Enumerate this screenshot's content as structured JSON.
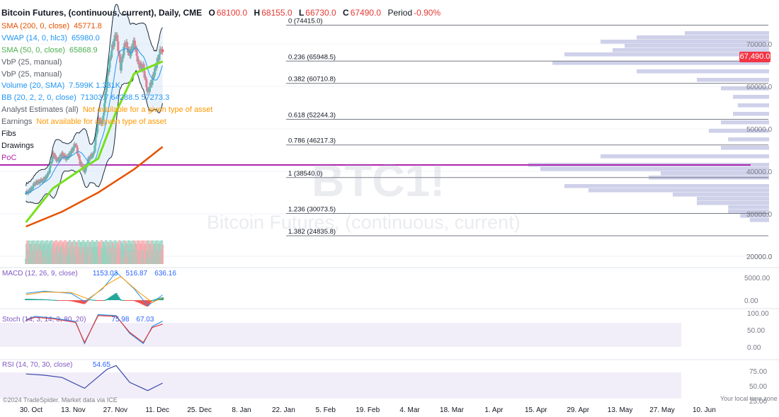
{
  "header": {
    "symbol": "Bitcoin Futures, (continuous, current), Daily, CME",
    "o_label": "O",
    "o": "68100.0",
    "h_label": "H",
    "h": "68155.0",
    "l_label": "L",
    "l": "66730.0",
    "c_label": "C",
    "c": "67490.0",
    "period_label": "Period",
    "period": "-0.90%"
  },
  "indicators": [
    {
      "label": "SMA (200, 0, close)",
      "value": "45771.8",
      "color": "#e65100"
    },
    {
      "label": "VWAP (14, 0, hlc3)",
      "value": "65980.0",
      "color": "#2196f3"
    },
    {
      "label": "SMA (50, 0, close)",
      "value": "65868.9",
      "color": "#4caf50"
    },
    {
      "label": "VbP (25, manual)",
      "value": "",
      "color": "#5d606b"
    },
    {
      "label": "VbP (25, manual)",
      "value": "",
      "color": "#5d606b"
    },
    {
      "label": "Volume (20, SMA)",
      "value": "7.599K  1.331K",
      "color": "#2196f3"
    },
    {
      "label": "BB (20, 2, 2, 0, close)",
      "value": "71303.7  64288.5  57273.3",
      "color": "#2196f3"
    },
    {
      "label": "Analyst Estimates (all)",
      "value": "Not available for a given type of asset",
      "color": "#5d606b",
      "value_color": "#ff9800"
    },
    {
      "label": "Earnings",
      "value": "Not available for a given type of asset",
      "color": "#5d606b",
      "value_color": "#ff9800"
    },
    {
      "label": "Fibs",
      "value": "",
      "color": "#131722"
    },
    {
      "label": "Drawings",
      "value": "",
      "color": "#131722"
    },
    {
      "label": "PoC",
      "value": "",
      "color": "#b026b0"
    }
  ],
  "watermark": {
    "ticker": "BTC1!",
    "name": "Bitcoin Futures, (continuous, current)"
  },
  "price_badge": "67,490.0",
  "footer": {
    "copyright": "©2024 TradeSpider. Market data via ICE",
    "local_time": "Your local time zone"
  },
  "chart_data": {
    "type": "line",
    "x_ticks": [
      "30. Oct",
      "13. Nov",
      "27. Nov",
      "11. Dec",
      "25. Dec",
      "8. Jan",
      "22. Jan",
      "5. Feb",
      "19. Feb",
      "4. Mar",
      "18. Mar",
      "1. Apr",
      "15. Apr",
      "29. Apr",
      "13. May",
      "27. May",
      "10. Jun"
    ],
    "price_axis": {
      "ticks": [
        70000,
        60000,
        50000,
        40000,
        30000,
        20000
      ],
      "labels": [
        "70000.0",
        "60000.0",
        "50000.0",
        "40000.0",
        "30000.0",
        "20000.0"
      ]
    },
    "close_series": [
      [
        "2023-10-23",
        34800
      ],
      [
        "2023-10-30",
        35600
      ],
      [
        "2023-11-06",
        37200
      ],
      [
        "2023-11-13",
        37600
      ],
      [
        "2023-11-20",
        38000
      ],
      [
        "2023-11-27",
        39500
      ],
      [
        "2023-12-04",
        44000
      ],
      [
        "2023-12-11",
        42500
      ],
      [
        "2023-12-18",
        44000
      ],
      [
        "2023-12-25",
        43000
      ],
      [
        "2024-01-01",
        44500
      ],
      [
        "2024-01-08",
        46500
      ],
      [
        "2024-01-15",
        42000
      ],
      [
        "2024-01-22",
        40000
      ],
      [
        "2024-01-29",
        43200
      ],
      [
        "2024-02-05",
        44000
      ],
      [
        "2024-02-12",
        52000
      ],
      [
        "2024-02-19",
        51500
      ],
      [
        "2024-02-26",
        62000
      ],
      [
        "2024-03-04",
        68500
      ],
      [
        "2024-03-11",
        72500
      ],
      [
        "2024-03-18",
        64500
      ],
      [
        "2024-03-25",
        70500
      ],
      [
        "2024-04-01",
        67500
      ],
      [
        "2024-04-08",
        70500
      ],
      [
        "2024-04-15",
        65000
      ],
      [
        "2024-04-22",
        64500
      ],
      [
        "2024-04-29",
        58500
      ],
      [
        "2024-05-06",
        61500
      ],
      [
        "2024-05-13",
        65500
      ],
      [
        "2024-05-20",
        69000
      ],
      [
        "2024-05-22",
        67490
      ]
    ],
    "sma200": [
      [
        "2023-10-23",
        27000
      ],
      [
        "2023-12-18",
        30500
      ],
      [
        "2024-02-12",
        35000
      ],
      [
        "2024-04-08",
        40500
      ],
      [
        "2024-05-22",
        45771.8
      ]
    ],
    "sma50": [
      [
        "2023-10-23",
        28000
      ],
      [
        "2023-12-04",
        36000
      ],
      [
        "2024-01-22",
        41000
      ],
      [
        "2024-02-12",
        43000
      ],
      [
        "2024-03-11",
        54000
      ],
      [
        "2024-04-08",
        63000
      ],
      [
        "2024-05-22",
        65868.9
      ]
    ],
    "fib_levels": [
      {
        "label": "0 (74415.0)",
        "value": 74415
      },
      {
        "label": "0.236 (65948.5)",
        "value": 65948.5
      },
      {
        "label": "0.382 (60710.8)",
        "value": 60710.8
      },
      {
        "label": "0.618 (52244.3)",
        "value": 52244.3
      },
      {
        "label": "0.786 (46217.3)",
        "value": 46217.3
      },
      {
        "label": "1 (38540.0)",
        "value": 38540
      },
      {
        "label": "1.236 (30073.5)",
        "value": 30073.5
      },
      {
        "label": "1.382 (24835.8)",
        "value": 24835.8
      }
    ],
    "poc": 41500,
    "vbp_profile": [
      [
        72500,
        0.35
      ],
      [
        71500,
        0.55
      ],
      [
        70500,
        0.7
      ],
      [
        69500,
        0.6
      ],
      [
        68500,
        0.65
      ],
      [
        67500,
        0.85
      ],
      [
        65500,
        0.9
      ],
      [
        63500,
        0.55
      ],
      [
        61500,
        0.3
      ],
      [
        59500,
        0.2
      ],
      [
        57500,
        0.15
      ],
      [
        55500,
        0.13
      ],
      [
        53500,
        0.15
      ],
      [
        51500,
        0.2
      ],
      [
        49500,
        0.25
      ],
      [
        47500,
        0.17
      ],
      [
        45500,
        0.2
      ],
      [
        43500,
        0.7
      ],
      [
        41500,
        1.0
      ],
      [
        40500,
        0.95
      ],
      [
        39500,
        0.45
      ],
      [
        38500,
        0.5
      ],
      [
        36500,
        0.85
      ],
      [
        35500,
        0.75
      ],
      [
        34500,
        0.4
      ],
      [
        33500,
        0.3
      ],
      [
        32500,
        0.3
      ],
      [
        31500,
        0.17
      ],
      [
        30500,
        0.17
      ],
      [
        29500,
        0.12
      ],
      [
        28500,
        0.08
      ]
    ],
    "macd": {
      "label": "MACD (12, 26, 9, close)",
      "values": [
        "1153.03",
        "516.87",
        "636.16"
      ],
      "ticks": [
        5000,
        0
      ],
      "tick_labels": [
        "5000.00",
        "0.00"
      ],
      "macd_line": [
        [
          "2023-10-23",
          1500
        ],
        [
          "2023-11-20",
          2000
        ],
        [
          "2024-01-01",
          1500
        ],
        [
          "2024-01-22",
          -300
        ],
        [
          "2024-02-19",
          2500
        ],
        [
          "2024-03-11",
          6200
        ],
        [
          "2024-04-08",
          2500
        ],
        [
          "2024-04-29",
          -1200
        ],
        [
          "2024-05-22",
          1153
        ]
      ],
      "signal_line": [
        [
          "2023-10-23",
          1200
        ],
        [
          "2023-11-20",
          1800
        ],
        [
          "2024-01-01",
          1700
        ],
        [
          "2024-01-29",
          200
        ],
        [
          "2024-02-26",
          3500
        ],
        [
          "2024-03-18",
          5200
        ],
        [
          "2024-04-15",
          1800
        ],
        [
          "2024-05-06",
          -500
        ],
        [
          "2024-05-22",
          517
        ]
      ]
    },
    "stoch": {
      "label": "Stoch (14, 3, 14, 3, 80, 20)",
      "values": [
        "75.98",
        "67.03"
      ],
      "ticks": [
        100,
        50,
        0
      ],
      "tick_labels": [
        "100.00",
        "50.00",
        "0.00"
      ],
      "k": [
        [
          "2023-10-23",
          80
        ],
        [
          "2023-11-06",
          90
        ],
        [
          "2023-12-04",
          85
        ],
        [
          "2024-01-08",
          75
        ],
        [
          "2024-01-22",
          10
        ],
        [
          "2024-02-12",
          95
        ],
        [
          "2024-03-11",
          92
        ],
        [
          "2024-04-01",
          40
        ],
        [
          "2024-04-22",
          10
        ],
        [
          "2024-05-06",
          60
        ],
        [
          "2024-05-22",
          76
        ]
      ],
      "d": [
        [
          "2023-10-23",
          78
        ],
        [
          "2023-11-06",
          87
        ],
        [
          "2023-12-04",
          83
        ],
        [
          "2024-01-08",
          72
        ],
        [
          "2024-01-22",
          13
        ],
        [
          "2024-02-12",
          92
        ],
        [
          "2024-03-11",
          90
        ],
        [
          "2024-04-01",
          43
        ],
        [
          "2024-04-22",
          13
        ],
        [
          "2024-05-06",
          57
        ],
        [
          "2024-05-22",
          67
        ]
      ]
    },
    "rsi": {
      "label": "RSI (14, 70, 30, close)",
      "values": [
        "54.65"
      ],
      "ticks": [
        75,
        50,
        25
      ],
      "tick_labels": [
        "75.00",
        "50.00",
        "25.00"
      ],
      "line": [
        [
          "2023-10-23",
          70
        ],
        [
          "2023-11-20",
          68
        ],
        [
          "2023-12-18",
          64
        ],
        [
          "2024-01-22",
          46
        ],
        [
          "2024-02-26",
          78
        ],
        [
          "2024-03-11",
          84
        ],
        [
          "2024-04-01",
          56
        ],
        [
          "2024-04-29",
          42
        ],
        [
          "2024-05-22",
          54.65
        ]
      ]
    },
    "volume_ticks": [
      "20000.0"
    ]
  }
}
